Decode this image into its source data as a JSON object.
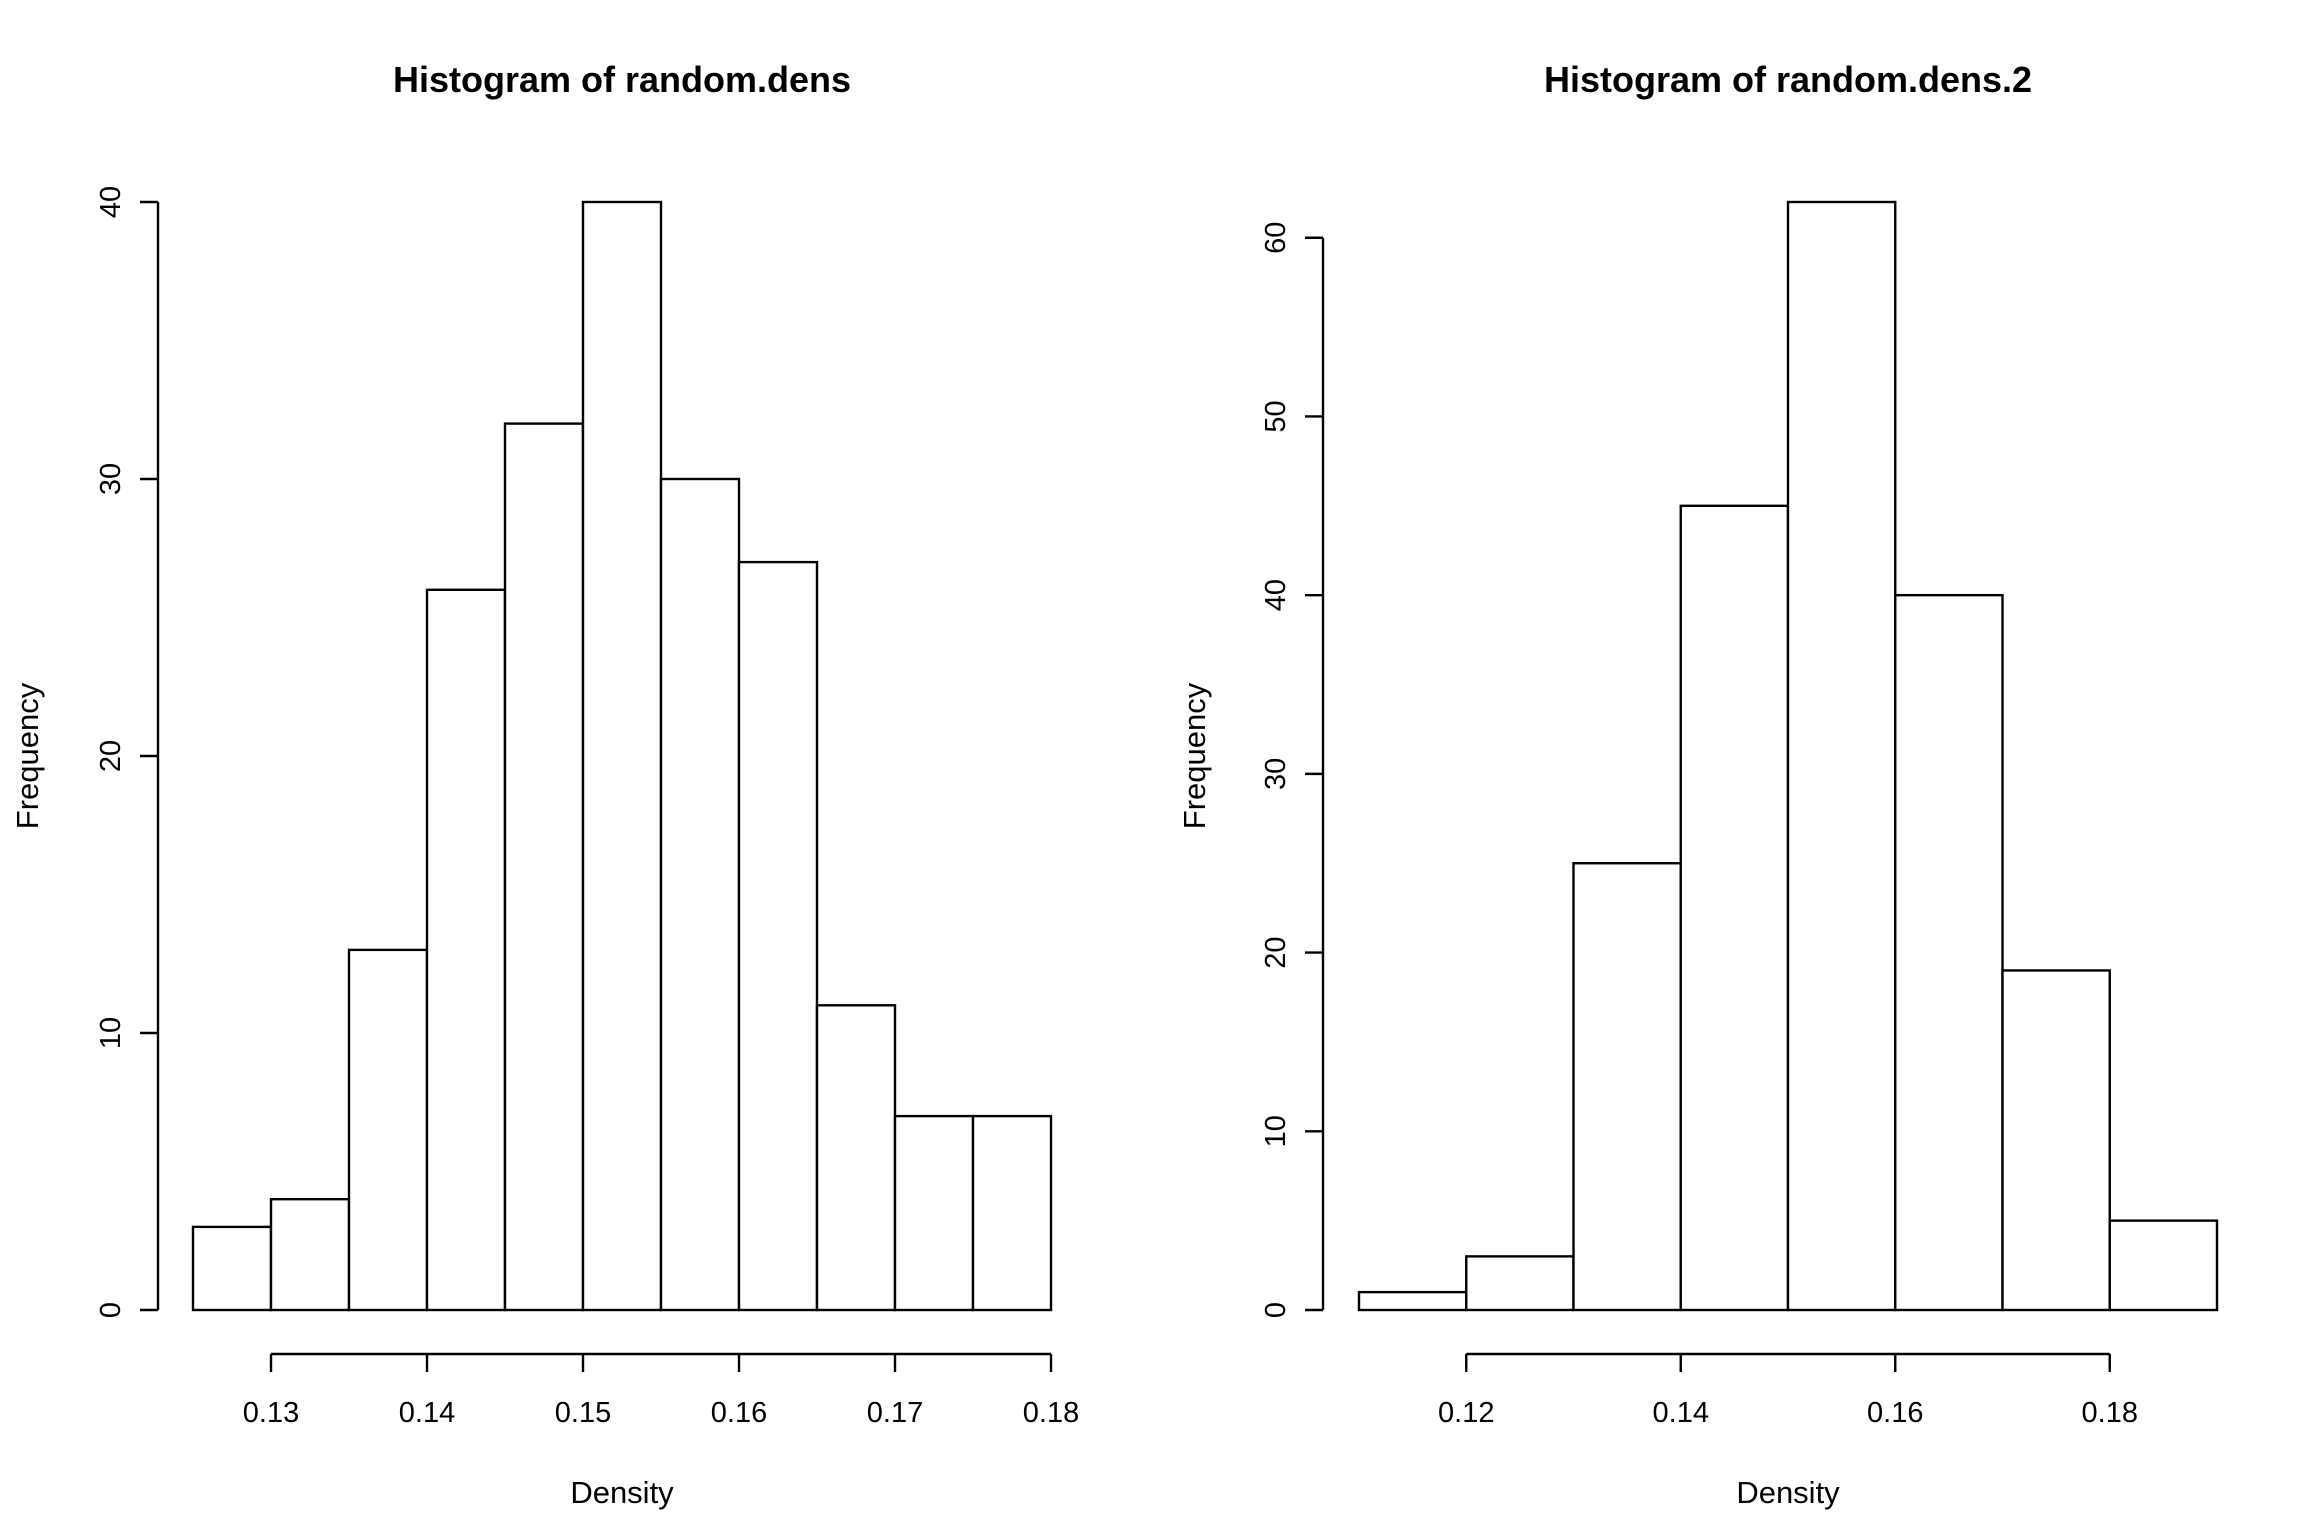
{
  "chart_data": [
    {
      "type": "bar",
      "title": "Histogram of random.dens",
      "xlabel": "Density",
      "ylabel": "Frequency",
      "bin_edges": [
        0.125,
        0.13,
        0.135,
        0.14,
        0.145,
        0.15,
        0.155,
        0.16,
        0.165,
        0.17,
        0.175,
        0.18
      ],
      "values": [
        3,
        4,
        13,
        26,
        32,
        40,
        30,
        27,
        11,
        7,
        7
      ],
      "x_ticks": [
        0.13,
        0.14,
        0.15,
        0.16,
        0.17,
        0.18
      ],
      "x_tick_labels": [
        "0.13",
        "0.14",
        "0.15",
        "0.16",
        "0.17",
        "0.18"
      ],
      "y_ticks": [
        0,
        10,
        20,
        30,
        40
      ],
      "y_tick_labels": [
        "0",
        "10",
        "20",
        "30",
        "40"
      ],
      "xlim": [
        0.125,
        0.18
      ],
      "ylim": [
        0,
        40
      ],
      "grid": false
    },
    {
      "type": "bar",
      "title": "Histogram of random.dens.2",
      "xlabel": "Density",
      "ylabel": "Frequency",
      "bin_edges": [
        0.11,
        0.12,
        0.13,
        0.14,
        0.15,
        0.16,
        0.17,
        0.18,
        0.19
      ],
      "values": [
        1,
        3,
        25,
        45,
        62,
        40,
        19,
        5
      ],
      "x_ticks": [
        0.12,
        0.14,
        0.16,
        0.18
      ],
      "x_tick_labels": [
        "0.12",
        "0.14",
        "0.16",
        "0.18"
      ],
      "y_ticks": [
        0,
        10,
        20,
        30,
        40,
        50,
        60
      ],
      "y_tick_labels": [
        "0",
        "10",
        "20",
        "30",
        "40",
        "50",
        "60"
      ],
      "xlim": [
        0.11,
        0.19
      ],
      "ylim": [
        0,
        62
      ],
      "grid": false
    }
  ]
}
